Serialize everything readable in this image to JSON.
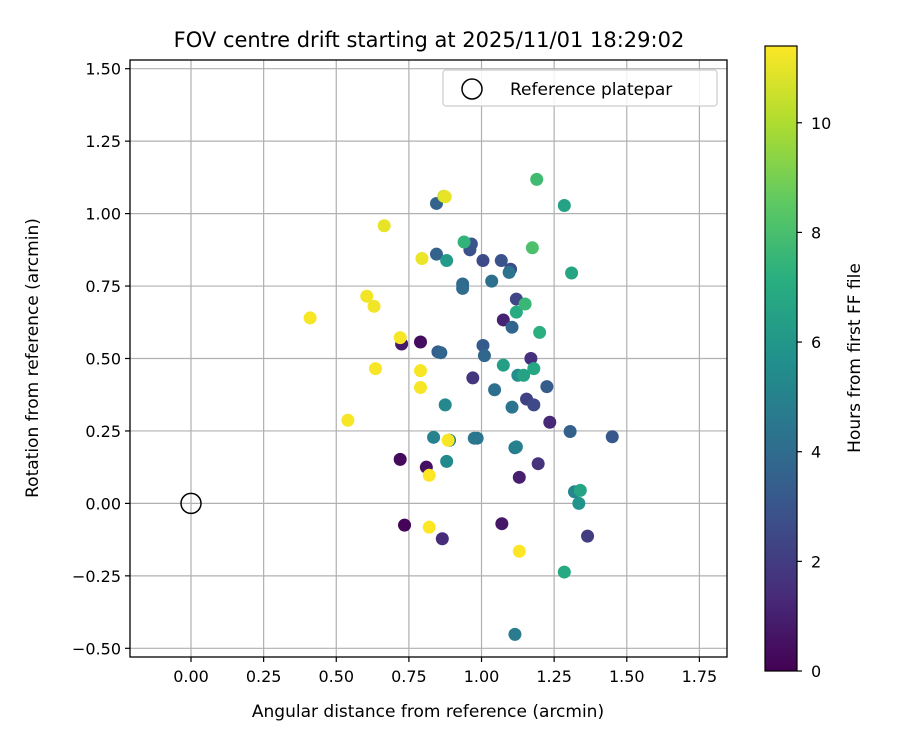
{
  "chart_data": {
    "type": "scatter",
    "title": "FOV centre drift starting at 2025/11/01 18:29:02",
    "xlabel": "Angular distance from reference (arcmin)",
    "ylabel": "Rotation from reference (arcmin)",
    "xlim": [
      -0.21,
      1.845
    ],
    "ylim": [
      -0.53,
      1.53
    ],
    "xticks": [
      "0.00",
      "0.25",
      "0.50",
      "0.75",
      "1.00",
      "1.25",
      "1.50",
      "1.75"
    ],
    "xtick_values": [
      0,
      0.25,
      0.5,
      0.75,
      1.0,
      1.25,
      1.5,
      1.75
    ],
    "yticks": [
      "−0.50",
      "−0.25",
      "0.00",
      "0.25",
      "0.50",
      "0.75",
      "1.00",
      "1.25",
      "1.50"
    ],
    "ytick_values": [
      -0.5,
      -0.25,
      0,
      0.25,
      0.5,
      0.75,
      1.0,
      1.25,
      1.5
    ],
    "grid": true,
    "legend": {
      "position": "top-right",
      "label": "Reference platepar"
    },
    "reference_point": {
      "x": 0.0,
      "y": 0.0
    },
    "colorbar": {
      "label": "Hours from first FF file",
      "min": 0,
      "max": 11.4,
      "ticks": [
        "0",
        "2",
        "4",
        "6",
        "8",
        "10"
      ],
      "tick_values": [
        0,
        2,
        4,
        6,
        8,
        10
      ],
      "colormap": "viridis"
    },
    "points": [
      {
        "x": 0.735,
        "y": -0.075,
        "c": 0.1
      },
      {
        "x": 0.72,
        "y": 0.152,
        "c": 0.3
      },
      {
        "x": 0.79,
        "y": 0.557,
        "c": 0.4
      },
      {
        "x": 0.81,
        "y": 0.125,
        "c": 0.5
      },
      {
        "x": 1.07,
        "y": -0.07,
        "c": 0.7
      },
      {
        "x": 0.725,
        "y": 0.55,
        "c": 0.8
      },
      {
        "x": 1.13,
        "y": 0.09,
        "c": 1.0
      },
      {
        "x": 1.075,
        "y": 0.633,
        "c": 1.1
      },
      {
        "x": 1.235,
        "y": 0.28,
        "c": 1.3
      },
      {
        "x": 0.865,
        "y": -0.122,
        "c": 1.4
      },
      {
        "x": 1.17,
        "y": 0.5,
        "c": 1.5
      },
      {
        "x": 1.195,
        "y": 0.137,
        "c": 1.6
      },
      {
        "x": 0.97,
        "y": 0.433,
        "c": 1.8
      },
      {
        "x": 1.365,
        "y": -0.113,
        "c": 2.0
      },
      {
        "x": 1.155,
        "y": 0.36,
        "c": 2.2
      },
      {
        "x": 1.12,
        "y": 0.705,
        "c": 2.4
      },
      {
        "x": 1.18,
        "y": 0.34,
        "c": 2.5
      },
      {
        "x": 1.005,
        "y": 0.838,
        "c": 2.6
      },
      {
        "x": 1.1,
        "y": 0.808,
        "c": 2.7
      },
      {
        "x": 0.96,
        "y": 0.875,
        "c": 2.8
      },
      {
        "x": 1.068,
        "y": 0.838,
        "c": 2.9
      },
      {
        "x": 0.965,
        "y": 0.895,
        "c": 3.0
      },
      {
        "x": 1.45,
        "y": 0.23,
        "c": 3.1
      },
      {
        "x": 1.005,
        "y": 0.545,
        "c": 3.2
      },
      {
        "x": 1.225,
        "y": 0.403,
        "c": 3.3
      },
      {
        "x": 0.85,
        "y": 0.523,
        "c": 3.4
      },
      {
        "x": 1.305,
        "y": 0.248,
        "c": 3.5
      },
      {
        "x": 0.845,
        "y": 0.86,
        "c": 3.6
      },
      {
        "x": 0.845,
        "y": 1.035,
        "c": 3.6
      },
      {
        "x": 1.105,
        "y": 0.608,
        "c": 3.7
      },
      {
        "x": 0.86,
        "y": 0.52,
        "c": 3.7
      },
      {
        "x": 1.01,
        "y": 0.51,
        "c": 3.8
      },
      {
        "x": 0.935,
        "y": 0.757,
        "c": 3.9
      },
      {
        "x": 0.935,
        "y": 0.742,
        "c": 4.0
      },
      {
        "x": 1.045,
        "y": 0.392,
        "c": 4.1
      },
      {
        "x": 1.035,
        "y": 0.767,
        "c": 4.2
      },
      {
        "x": 1.095,
        "y": 0.797,
        "c": 4.3
      },
      {
        "x": 0.985,
        "y": 0.225,
        "c": 4.4
      },
      {
        "x": 1.105,
        "y": 0.332,
        "c": 4.4
      },
      {
        "x": 0.975,
        "y": 0.225,
        "c": 4.5
      },
      {
        "x": 1.115,
        "y": 0.192,
        "c": 4.6
      },
      {
        "x": 1.115,
        "y": -0.452,
        "c": 4.7
      },
      {
        "x": 0.89,
        "y": 0.218,
        "c": 4.8
      },
      {
        "x": 1.12,
        "y": 0.195,
        "c": 4.9
      },
      {
        "x": 0.835,
        "y": 0.228,
        "c": 5.0
      },
      {
        "x": 1.32,
        "y": 0.04,
        "c": 5.2
      },
      {
        "x": 0.875,
        "y": 0.34,
        "c": 5.3
      },
      {
        "x": 0.88,
        "y": 0.145,
        "c": 5.4
      },
      {
        "x": 1.125,
        "y": 0.442,
        "c": 5.6
      },
      {
        "x": 1.335,
        "y": 0.0,
        "c": 5.8
      },
      {
        "x": 0.88,
        "y": 0.838,
        "c": 6.2
      },
      {
        "x": 1.075,
        "y": 0.477,
        "c": 6.4
      },
      {
        "x": 1.285,
        "y": 1.028,
        "c": 6.5
      },
      {
        "x": 1.145,
        "y": 0.442,
        "c": 6.6
      },
      {
        "x": 1.31,
        "y": 0.795,
        "c": 6.7
      },
      {
        "x": 1.34,
        "y": 0.045,
        "c": 6.7
      },
      {
        "x": 1.18,
        "y": 0.465,
        "c": 6.8
      },
      {
        "x": 1.285,
        "y": -0.237,
        "c": 6.9
      },
      {
        "x": 1.12,
        "y": 0.66,
        "c": 7.0
      },
      {
        "x": 1.2,
        "y": 0.59,
        "c": 7.2
      },
      {
        "x": 0.94,
        "y": 0.902,
        "c": 7.4
      },
      {
        "x": 1.15,
        "y": 0.688,
        "c": 7.6
      },
      {
        "x": 1.19,
        "y": 1.118,
        "c": 7.8
      },
      {
        "x": 1.175,
        "y": 0.882,
        "c": 8.1
      },
      {
        "x": 0.87,
        "y": 1.06,
        "c": 10.6
      },
      {
        "x": 0.875,
        "y": 1.058,
        "c": 11.0
      },
      {
        "x": 0.665,
        "y": 0.958,
        "c": 11.0
      },
      {
        "x": 0.795,
        "y": 0.845,
        "c": 11.1
      },
      {
        "x": 0.605,
        "y": 0.715,
        "c": 11.2
      },
      {
        "x": 0.63,
        "y": 0.68,
        "c": 11.2
      },
      {
        "x": 0.41,
        "y": 0.64,
        "c": 11.3
      },
      {
        "x": 0.72,
        "y": 0.572,
        "c": 11.3
      },
      {
        "x": 0.635,
        "y": 0.465,
        "c": 11.3
      },
      {
        "x": 0.79,
        "y": 0.458,
        "c": 11.3
      },
      {
        "x": 0.79,
        "y": 0.4,
        "c": 11.3
      },
      {
        "x": 0.54,
        "y": 0.287,
        "c": 11.3
      },
      {
        "x": 0.885,
        "y": 0.218,
        "c": 11.3
      },
      {
        "x": 0.82,
        "y": 0.097,
        "c": 11.4
      },
      {
        "x": 0.82,
        "y": -0.082,
        "c": 11.4
      },
      {
        "x": 1.13,
        "y": -0.165,
        "c": 11.4
      }
    ]
  }
}
